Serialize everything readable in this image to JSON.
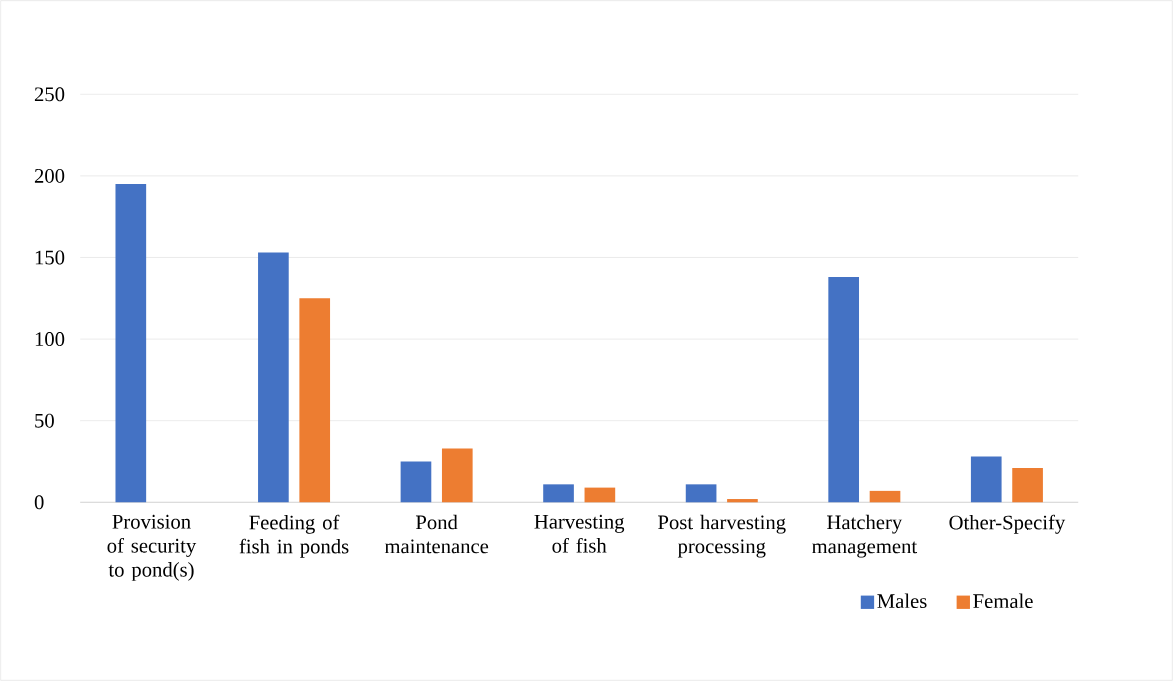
{
  "chart_data": {
    "type": "bar",
    "categories": [
      "Provision of security to pond(s)",
      "Feeding of fish in ponds",
      "Pond maintenance",
      "Harvesting of fish",
      "Post harvesting processing",
      "Hatchery management",
      "Other-Specify"
    ],
    "series": [
      {
        "name": "Males",
        "color": "#4472c4",
        "values": [
          195,
          153,
          25,
          11,
          11,
          138,
          28
        ]
      },
      {
        "name": "Female",
        "color": "#ed7d31",
        "values": [
          0,
          125,
          33,
          9,
          2,
          7,
          21
        ]
      }
    ],
    "ylim": [
      0,
      250
    ],
    "yticks": [
      0,
      50,
      100,
      150,
      200,
      250
    ],
    "grid": "y",
    "legend": "bottom right"
  }
}
